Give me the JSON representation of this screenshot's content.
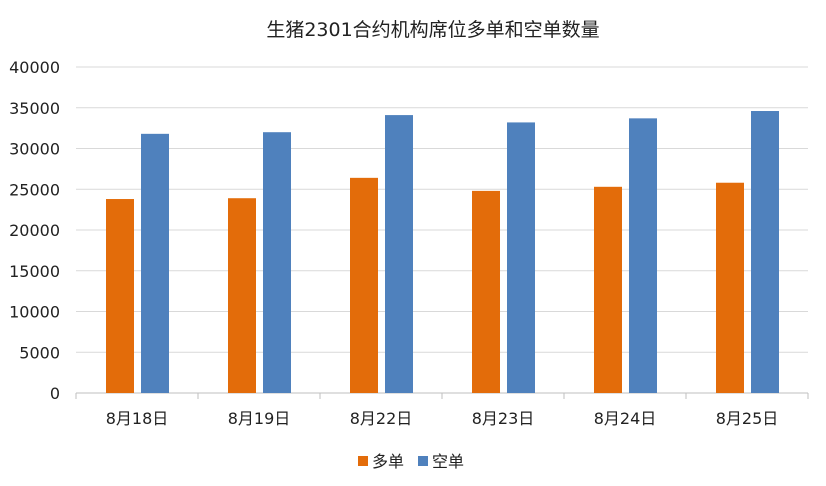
{
  "chart_data": {
    "type": "bar",
    "title": "生猪2301合约机构席位多单和空单数量",
    "xlabel": "",
    "ylabel": "",
    "ylim": [
      0,
      40000
    ],
    "yticks": [
      "0",
      "5000",
      "10000",
      "15000",
      "20000",
      "25000",
      "30000",
      "35000",
      "40000"
    ],
    "grid": true,
    "legend": "bottom",
    "categories": [
      "8月18日",
      "8月19日",
      "8月22日",
      "8月23日",
      "8月24日",
      "8月25日"
    ],
    "series": [
      {
        "name": "多单",
        "color": "#E36C0A",
        "values": [
          23800,
          23900,
          26400,
          24800,
          25300,
          25800
        ]
      },
      {
        "name": "空单",
        "color": "#4F81BD",
        "values": [
          31800,
          32000,
          34100,
          33200,
          33700,
          34600
        ]
      }
    ]
  }
}
